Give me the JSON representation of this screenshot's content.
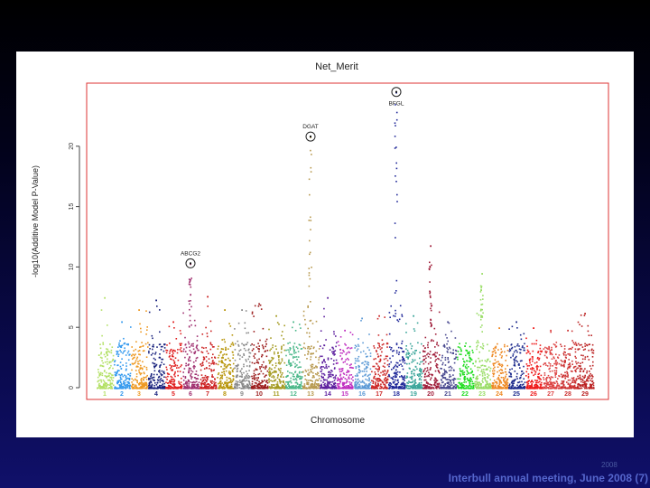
{
  "slide": {
    "year_mark": "2008",
    "footer": "Interbull annual meeting, June 2008 (7)"
  },
  "colors": {
    "frame": "#dd3333",
    "axis": "#444444",
    "circle": "#222222"
  },
  "chart_data": {
    "type": "scatter",
    "title": "Net_Merit",
    "xlabel": "Chromosome",
    "ylabel": "-log10(Additive Model P-Value)",
    "ylim": [
      0,
      25
    ],
    "yticks": [
      0,
      5,
      10,
      15,
      20
    ],
    "chromosomes": [
      {
        "label": "1",
        "color": "#b3e066",
        "peak": 7.5
      },
      {
        "label": "2",
        "color": "#3399ee",
        "peak": 5.5
      },
      {
        "label": "3",
        "color": "#ee9922",
        "peak": 6.5
      },
      {
        "label": "4",
        "color": "#1a237e",
        "peak": 7.3
      },
      {
        "label": "5",
        "color": "#e02020",
        "peak": 5.5
      },
      {
        "label": "6",
        "color": "#a03070",
        "peak": 10.3
      },
      {
        "label": "7",
        "color": "#cc2222",
        "peak": 7.6
      },
      {
        "label": "8",
        "color": "#b8960c",
        "peak": 6.5
      },
      {
        "label": "9",
        "color": "#8a8a8a",
        "peak": 6.5
      },
      {
        "label": "10",
        "color": "#9b1b1b",
        "peak": 7.0
      },
      {
        "label": "11",
        "color": "#a59b22",
        "peak": 6.0
      },
      {
        "label": "12",
        "color": "#4cb88a",
        "peak": 5.5
      },
      {
        "label": "13",
        "color": "#b89a50",
        "peak": 20.8
      },
      {
        "label": "14",
        "color": "#5c1f9e",
        "peak": 7.5
      },
      {
        "label": "15",
        "color": "#c030c0",
        "peak": 4.8
      },
      {
        "label": "16",
        "color": "#5e9bd6",
        "peak": 5.8
      },
      {
        "label": "17",
        "color": "#cc2a2a",
        "peak": 6.0
      },
      {
        "label": "18",
        "color": "#202899",
        "peak": 24.5
      },
      {
        "label": "19",
        "color": "#3aa59a",
        "peak": 6.0
      },
      {
        "label": "20",
        "color": "#a01e3a",
        "peak": 11.8
      },
      {
        "label": "21",
        "color": "#4a4a90",
        "peak": 5.5
      },
      {
        "label": "22",
        "color": "#22dd22",
        "peak": 3.5
      },
      {
        "label": "23",
        "color": "#99dd66",
        "peak": 9.5
      },
      {
        "label": "24",
        "color": "#ee8822",
        "peak": 5.0
      },
      {
        "label": "25",
        "color": "#1c2a8c",
        "peak": 5.5
      },
      {
        "label": "26",
        "color": "#ee1c1c",
        "peak": 5.0
      },
      {
        "label": "27",
        "color": "#dd4444",
        "peak": 4.8
      },
      {
        "label": "28",
        "color": "#cc3333",
        "peak": 4.8
      },
      {
        "label": "29",
        "color": "#bb2222",
        "peak": 6.2
      }
    ],
    "highlights": [
      {
        "label": "ABCG2",
        "chromosome": "6",
        "value": 10.3
      },
      {
        "label": "DGAT",
        "chromosome": "13",
        "value": 20.8
      },
      {
        "label": "BFGL",
        "chromosome": "18",
        "value": 24.5
      }
    ]
  }
}
